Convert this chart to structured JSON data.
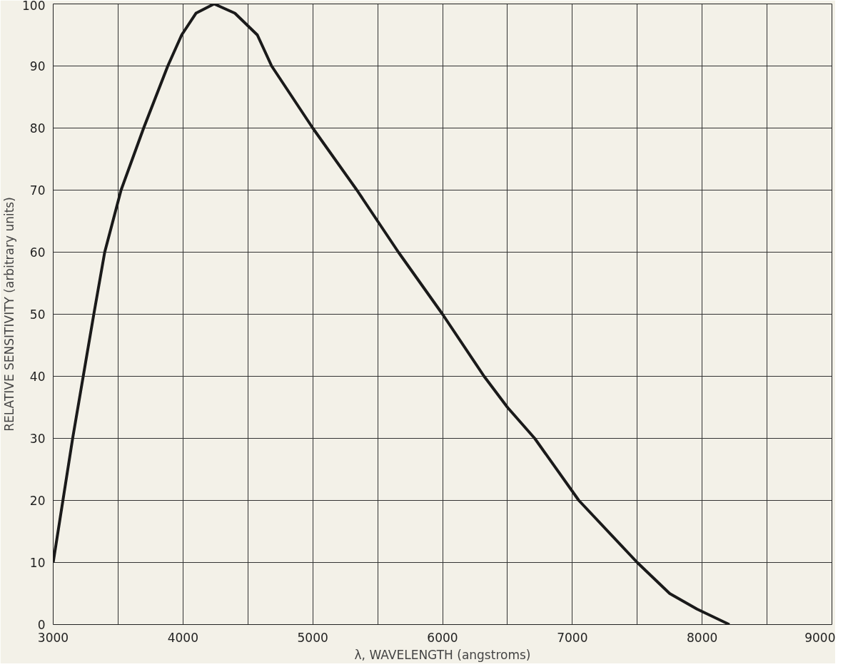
{
  "chart_data": {
    "type": "line",
    "xlabel": "λ, WAVELENGTH (angstroms)",
    "ylabel": "RELATIVE SENSITIVITY (arbitrary units)",
    "x": [
      3000,
      3150,
      3313,
      3397,
      3523,
      3697,
      3883,
      3990,
      4100,
      4240,
      4400,
      4573,
      4683,
      5000,
      5340,
      5660,
      6000,
      6320,
      6500,
      6710,
      7050,
      7500,
      7750,
      7960,
      8210
    ],
    "series": [
      {
        "color": "#1a1a1a",
        "values": [
          10,
          30,
          50,
          60,
          70,
          80,
          90,
          95,
          98.5,
          100,
          98.5,
          95,
          90,
          80,
          70,
          60,
          50,
          40,
          35,
          30,
          20,
          10,
          5,
          2.5,
          0
        ]
      }
    ],
    "xlim": [
      3000,
      9000
    ],
    "xticks": [
      3000,
      {
        "value": 3500,
        "label": null
      },
      4000,
      {
        "value": 4500,
        "label": null
      },
      5000,
      {
        "value": 5500,
        "label": null
      },
      6000,
      {
        "value": 6500,
        "label": null
      },
      7000,
      {
        "value": 7500,
        "label": null
      },
      8000,
      {
        "value": 8500,
        "label": null
      },
      9000
    ],
    "ylim": [
      0,
      100
    ],
    "yticks": [
      0,
      10,
      20,
      30,
      40,
      50,
      60,
      70,
      80,
      90,
      100
    ],
    "grid": true,
    "line_style": "solid",
    "marker": "none"
  }
}
